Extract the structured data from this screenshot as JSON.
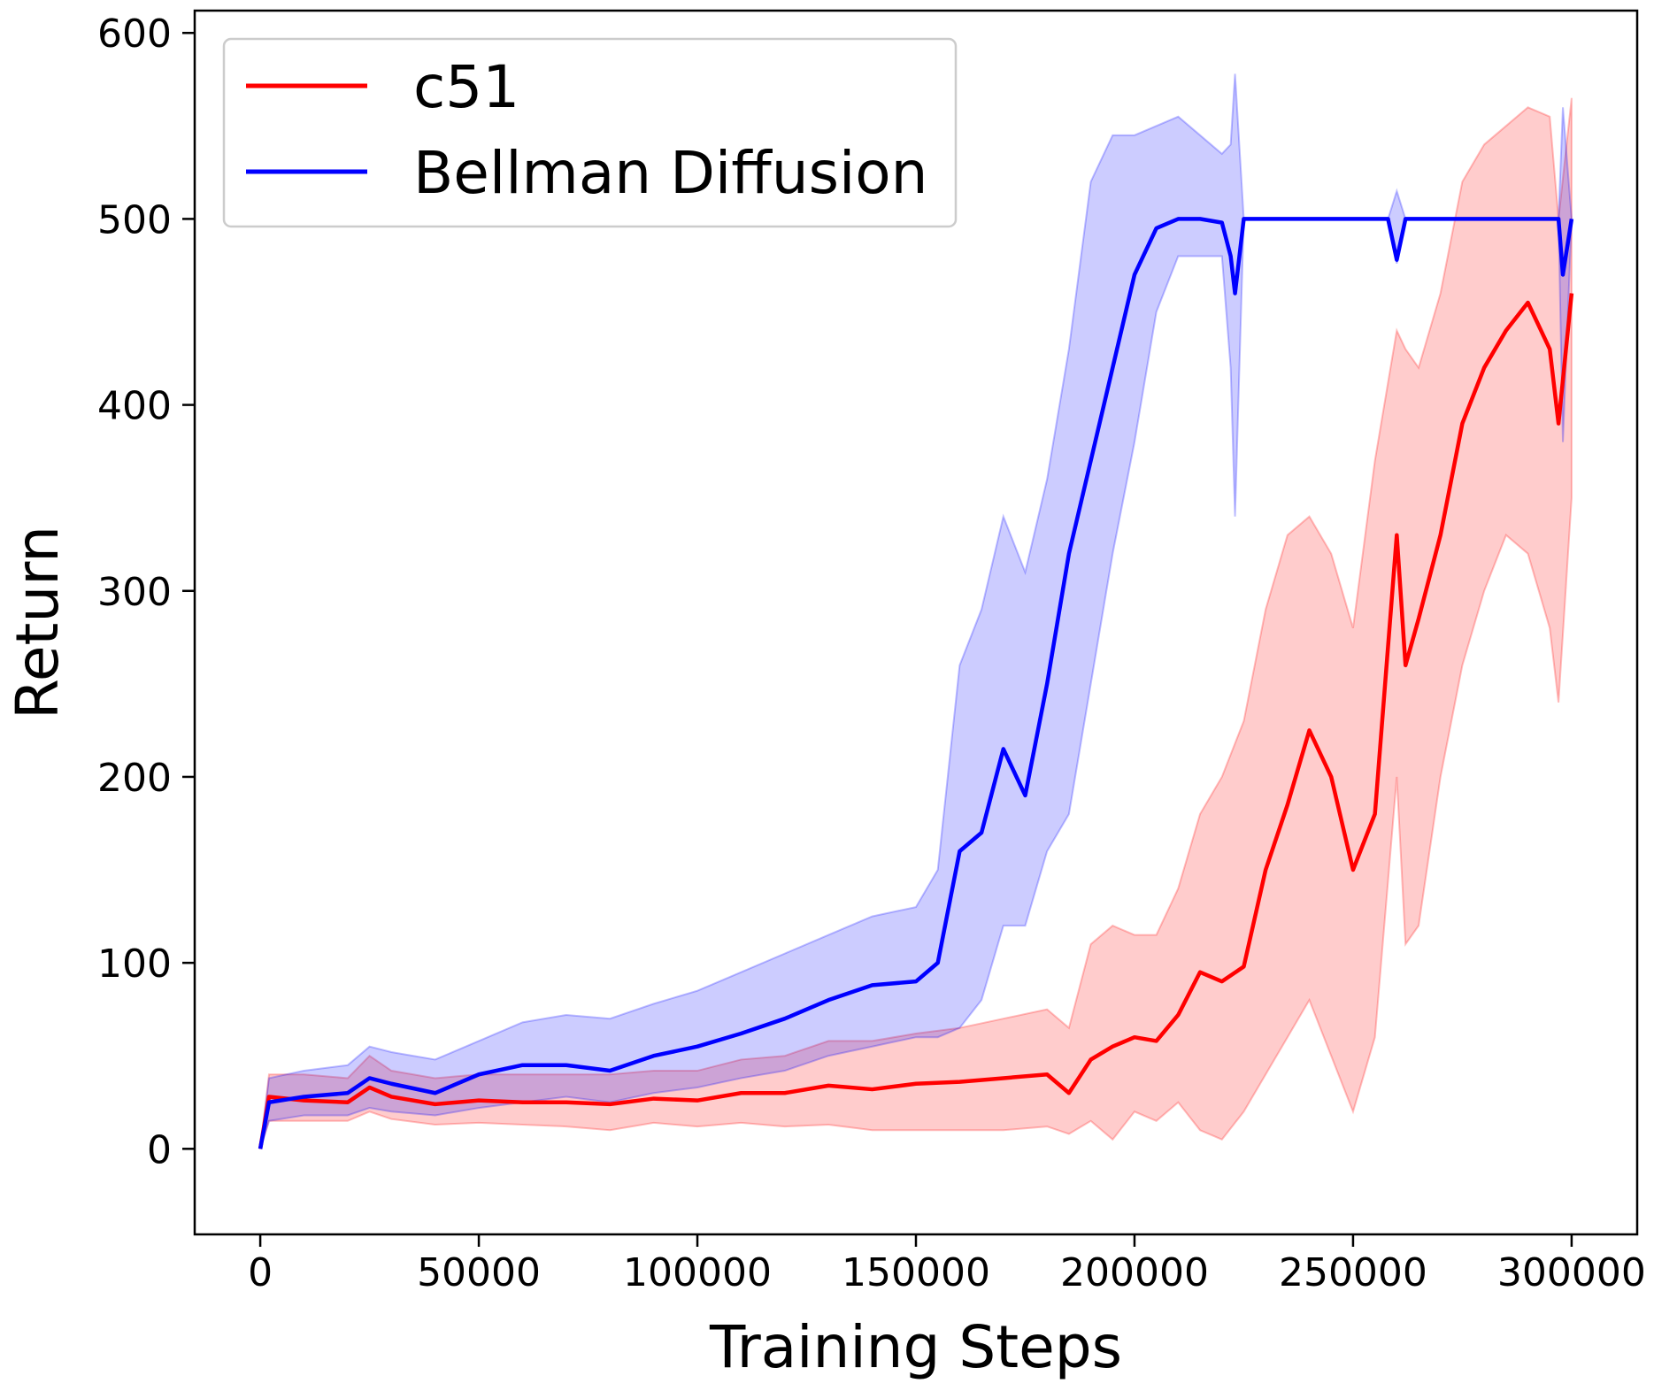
{
  "chart_data": {
    "type": "line",
    "title": "",
    "xlabel": "Training Steps",
    "ylabel": "Return",
    "xlim": [
      -15000,
      315000
    ],
    "ylim": [
      -46,
      612
    ],
    "xticks": [
      0,
      50000,
      100000,
      150000,
      200000,
      250000,
      300000
    ],
    "yticks": [
      0,
      100,
      200,
      300,
      400,
      500,
      600
    ],
    "grid": false,
    "legend_position": "top-left",
    "series": [
      {
        "name": "c51",
        "color": "#ff0000",
        "band_color": "#ff0000",
        "x": [
          0,
          2000,
          10000,
          20000,
          25000,
          30000,
          40000,
          50000,
          60000,
          70000,
          80000,
          90000,
          100000,
          110000,
          120000,
          130000,
          140000,
          150000,
          160000,
          170000,
          180000,
          185000,
          190000,
          195000,
          200000,
          205000,
          210000,
          215000,
          220000,
          225000,
          230000,
          235000,
          240000,
          245000,
          250000,
          255000,
          260000,
          262000,
          265000,
          270000,
          275000,
          280000,
          285000,
          290000,
          295000,
          297000,
          300000
        ],
        "mean": [
          0,
          28,
          26,
          25,
          33,
          28,
          24,
          26,
          25,
          25,
          24,
          27,
          26,
          30,
          30,
          34,
          32,
          35,
          36,
          38,
          40,
          30,
          48,
          55,
          60,
          58,
          72,
          95,
          90,
          98,
          150,
          185,
          225,
          200,
          150,
          180,
          330,
          260,
          285,
          330,
          390,
          420,
          440,
          455,
          430,
          390,
          460
        ],
        "lower": [
          0,
          15,
          15,
          15,
          20,
          16,
          13,
          14,
          13,
          12,
          10,
          14,
          12,
          14,
          12,
          13,
          10,
          10,
          10,
          10,
          12,
          8,
          15,
          5,
          20,
          15,
          25,
          10,
          5,
          20,
          40,
          60,
          80,
          50,
          20,
          60,
          200,
          110,
          120,
          200,
          260,
          300,
          330,
          320,
          280,
          240,
          350
        ],
        "upper": [
          0,
          40,
          40,
          38,
          50,
          42,
          38,
          40,
          40,
          40,
          40,
          42,
          42,
          48,
          50,
          58,
          58,
          62,
          65,
          70,
          75,
          65,
          110,
          120,
          115,
          115,
          140,
          180,
          200,
          230,
          290,
          330,
          340,
          320,
          280,
          370,
          440,
          430,
          420,
          460,
          520,
          540,
          550,
          560,
          555,
          500,
          565
        ]
      },
      {
        "name": "Bellman Diffusion",
        "color": "#0000ff",
        "band_color": "#0000ff",
        "x": [
          0,
          2000,
          10000,
          20000,
          25000,
          30000,
          40000,
          50000,
          60000,
          70000,
          80000,
          90000,
          100000,
          110000,
          120000,
          130000,
          140000,
          150000,
          155000,
          160000,
          165000,
          170000,
          175000,
          180000,
          185000,
          190000,
          195000,
          200000,
          205000,
          210000,
          215000,
          220000,
          222000,
          223000,
          225000,
          230000,
          240000,
          250000,
          258000,
          260000,
          262000,
          265000,
          270000,
          280000,
          290000,
          297000,
          298000,
          300000
        ],
        "mean": [
          0,
          25,
          28,
          30,
          38,
          35,
          30,
          40,
          45,
          45,
          42,
          50,
          55,
          62,
          70,
          80,
          88,
          90,
          100,
          160,
          170,
          215,
          190,
          250,
          320,
          370,
          420,
          470,
          495,
          500,
          500,
          498,
          480,
          460,
          500,
          500,
          500,
          500,
          500,
          478,
          500,
          500,
          500,
          500,
          500,
          500,
          470,
          500
        ],
        "lower": [
          0,
          15,
          18,
          18,
          22,
          20,
          18,
          22,
          25,
          28,
          25,
          30,
          33,
          38,
          42,
          50,
          55,
          60,
          60,
          65,
          80,
          120,
          120,
          160,
          180,
          250,
          320,
          380,
          450,
          480,
          480,
          480,
          420,
          340,
          500,
          500,
          500,
          500,
          500,
          476,
          500,
          500,
          500,
          500,
          500,
          500,
          380,
          500
        ],
        "upper": [
          0,
          38,
          42,
          45,
          55,
          52,
          48,
          58,
          68,
          72,
          70,
          78,
          85,
          95,
          105,
          115,
          125,
          130,
          150,
          260,
          290,
          340,
          310,
          360,
          430,
          520,
          545,
          545,
          550,
          555,
          545,
          535,
          540,
          578,
          500,
          500,
          500,
          500,
          500,
          515,
          500,
          500,
          500,
          500,
          500,
          500,
          560,
          500
        ]
      }
    ]
  }
}
